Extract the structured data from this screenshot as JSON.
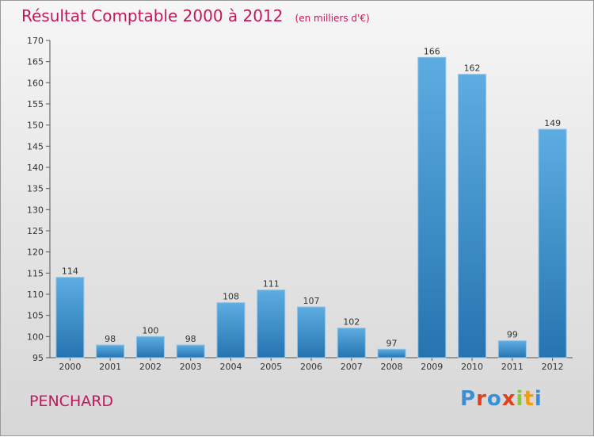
{
  "header": {
    "title": "Résultat Comptable 2000 à 2012",
    "unit": "(en milliers d'€)"
  },
  "footer": {
    "commune": "PENCHARD",
    "logo": [
      "P",
      "r",
      "o",
      "x",
      "i",
      "t",
      "i"
    ],
    "logo_colors": [
      "#3a8fd6",
      "#e2401c",
      "#3a8fd6",
      "#e2401c",
      "#8cc63f",
      "#f39c12",
      "#3a8fd6"
    ]
  },
  "colors": {
    "accent": "#c2185b",
    "bar_top": "#5dade2",
    "bar_bottom": "#2574b0"
  },
  "chart_data": {
    "type": "bar",
    "categories": [
      "2000",
      "2001",
      "2002",
      "2003",
      "2004",
      "2005",
      "2006",
      "2007",
      "2008",
      "2009",
      "2010",
      "2011",
      "2012"
    ],
    "values": [
      114,
      98,
      100,
      98,
      108,
      111,
      107,
      102,
      97,
      166,
      162,
      99,
      149
    ],
    "title": "Résultat Comptable 2000 à 2012",
    "xlabel": "",
    "ylabel": "",
    "ylim": [
      95,
      170
    ],
    "yticks": [
      95,
      100,
      105,
      110,
      115,
      120,
      125,
      130,
      135,
      140,
      145,
      150,
      155,
      160,
      165,
      170
    ],
    "grid": false,
    "legend": "none"
  }
}
